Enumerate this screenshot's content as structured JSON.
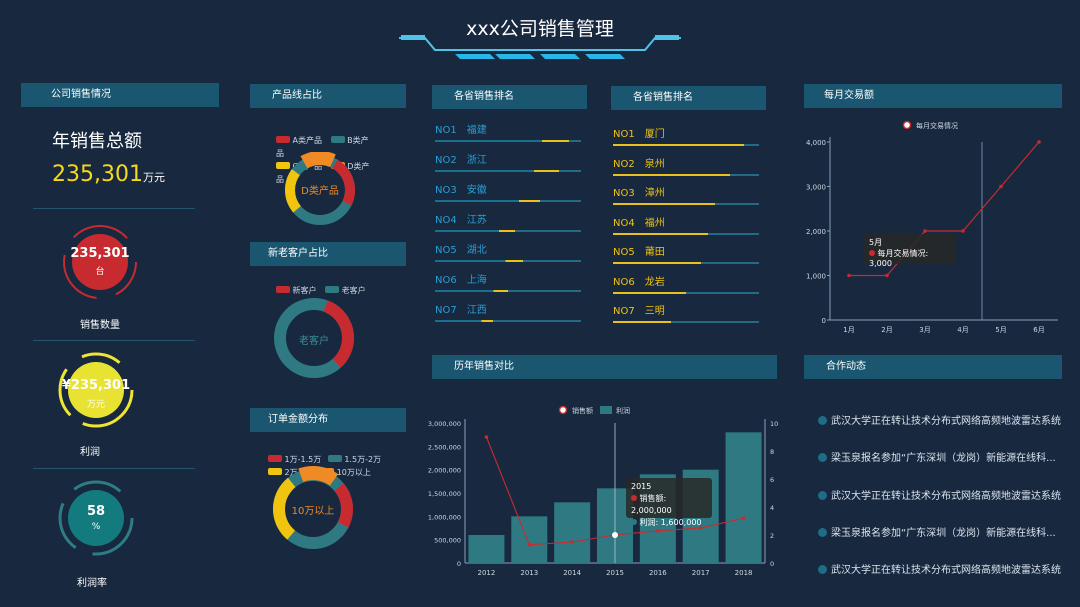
{
  "title": "xxx公司销售管理",
  "company_panel": {
    "header": "公司销售情况",
    "annual_label": "年销售总额",
    "annual_value": "235,301",
    "annual_unit": "万元",
    "gauges": [
      {
        "value": "235,301",
        "unit": "台",
        "label": "销售数量"
      },
      {
        "value": "¥235,301",
        "unit": "万元",
        "label": "利润"
      },
      {
        "value": "58",
        "unit": "%",
        "label": "利润率"
      }
    ]
  },
  "product_line": {
    "header": "产品线占比",
    "legend": [
      "A类产品",
      "B类产品",
      "C类产品",
      "D类产品"
    ],
    "center": "D类产品"
  },
  "customer_share": {
    "header": "新老客户占比",
    "legend": [
      "新客户",
      "老客户"
    ],
    "center": "老客户"
  },
  "order_distribution": {
    "header": "订单金额分布",
    "legend": [
      "1万-1.5万",
      "1.5万-2万",
      "2万-4万",
      "10万以上"
    ],
    "center": "10万以上"
  },
  "ranking_a": {
    "header": "各省销售排名",
    "items": [
      {
        "no": "NO1",
        "name": "福建",
        "pct": 0.92
      },
      {
        "no": "NO2",
        "name": "浙江",
        "pct": 0.85
      },
      {
        "no": "NO3",
        "name": "安徽",
        "pct": 0.72
      },
      {
        "no": "NO4",
        "name": "江苏",
        "pct": 0.55
      },
      {
        "no": "NO5",
        "name": "湖北",
        "pct": 0.6
      },
      {
        "no": "NO6",
        "name": "上海",
        "pct": 0.5
      },
      {
        "no": "NO7",
        "name": "江西",
        "pct": 0.4
      }
    ]
  },
  "ranking_b": {
    "header": "各省销售排名",
    "items": [
      {
        "no": "NO1",
        "name": "厦门",
        "pct": 0.9
      },
      {
        "no": "NO2",
        "name": "泉州",
        "pct": 0.8
      },
      {
        "no": "NO3",
        "name": "漳州",
        "pct": 0.7
      },
      {
        "no": "NO4",
        "name": "福州",
        "pct": 0.65
      },
      {
        "no": "NO5",
        "name": "莆田",
        "pct": 0.6
      },
      {
        "no": "NO6",
        "name": "龙岩",
        "pct": 0.5
      },
      {
        "no": "NO7",
        "name": "三明",
        "pct": 0.4
      }
    ]
  },
  "monthly": {
    "header": "每月交易额",
    "tooltip_title": "5月",
    "tooltip_line": "每月交易情况: 3,000"
  },
  "history": {
    "header": "历年销售对比",
    "tooltip_title": "2015",
    "tooltip_line1": "销售额: 2,000,000",
    "tooltip_line2": "利润: 1,600,000"
  },
  "news": {
    "header": "合作动态",
    "items": [
      "武汉大学正在转让技术分布式网络高频地波雷达系统",
      "梁玉泉报名参加“广东深圳（龙岗）新能源在线科...",
      "武汉大学正在转让技术分布式网络高频地波雷达系统",
      "梁玉泉报名参加“广东深圳（龙岗）新能源在线科...",
      "武汉大学正在转让技术分布式网络高频地波雷达系统"
    ]
  },
  "chart_data": [
    {
      "type": "line",
      "legend": [
        "每月交易情况"
      ],
      "categories": [
        "1月",
        "2月",
        "3月",
        "4月",
        "5月",
        "6月"
      ],
      "series": [
        {
          "name": "每月交易情况",
          "values": [
            1000,
            1000,
            2000,
            2000,
            3000,
            4000
          ]
        }
      ],
      "ylim": [
        0,
        4000
      ],
      "y_ticks": [
        "0",
        "1,000",
        "2,000",
        "3,000",
        "4,000"
      ],
      "color": "#c72b30"
    },
    {
      "type": "bar",
      "legend": [
        "销售额",
        "利润"
      ],
      "categories": [
        "2012",
        "2013",
        "2014",
        "2015",
        "2016",
        "2017",
        "2018"
      ],
      "series": [
        {
          "name": "销售额",
          "type": "line",
          "values": [
            9,
            1.3,
            1.5,
            2,
            2.3,
            2.5,
            3.2
          ],
          "axis": "right"
        },
        {
          "name": "利润",
          "type": "bar",
          "values": [
            600000,
            1000000,
            1300000,
            1600000,
            1900000,
            2000000,
            2800000
          ],
          "axis": "left"
        }
      ],
      "ylim_left": [
        0,
        3000000
      ],
      "ylim_right": [
        0,
        10
      ],
      "y_ticks_left": [
        "0",
        "500,000",
        "1,000,000",
        "1,500,000",
        "2,000,000",
        "2,500,000",
        "3,000,000"
      ],
      "y_ticks_right": [
        "0",
        "2",
        "4",
        "6",
        "8",
        "10"
      ],
      "colors": {
        "line": "#c72b30",
        "bar": "#2f7a82"
      }
    }
  ]
}
